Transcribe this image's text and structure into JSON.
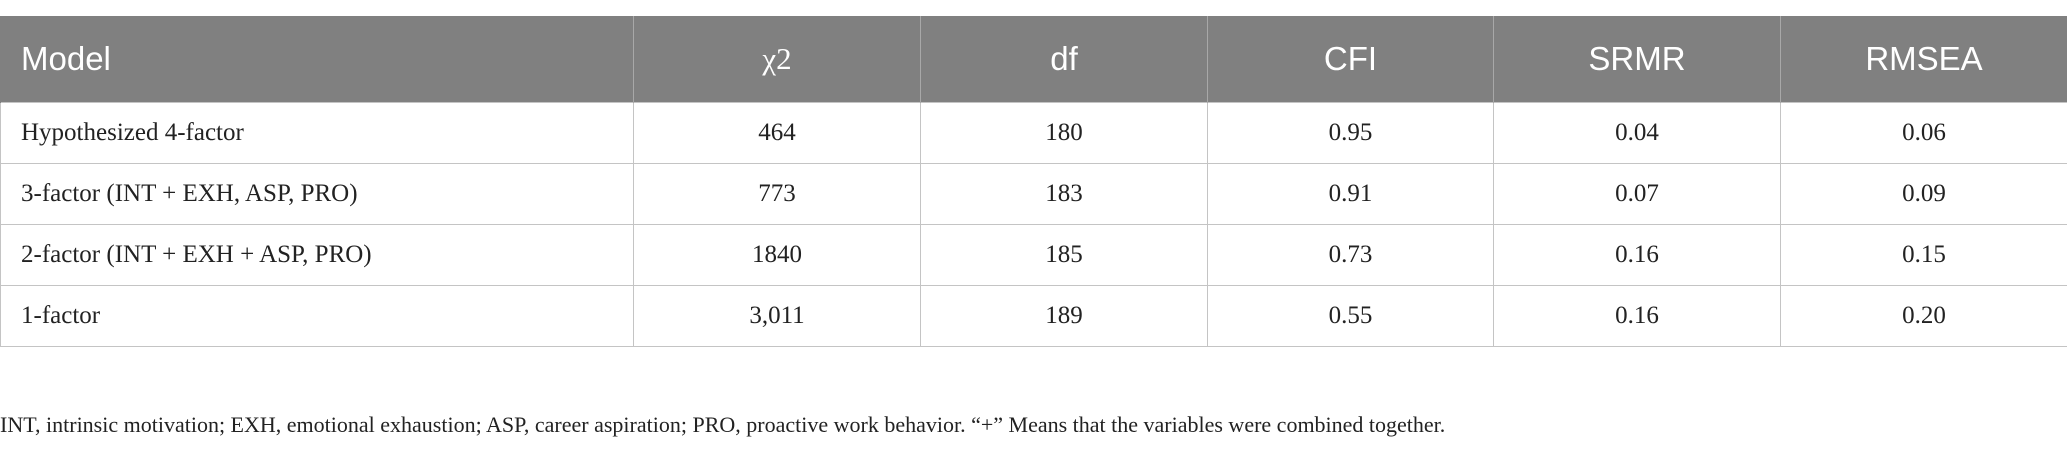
{
  "table": {
    "columns": [
      "Model",
      "χ2",
      "df",
      "CFI",
      "SRMR",
      "RMSEA"
    ],
    "rows": [
      [
        "Hypothesized 4-factor",
        "464",
        "180",
        "0.95",
        "0.04",
        "0.06"
      ],
      [
        "3-factor (INT + EXH, ASP, PRO)",
        "773",
        "183",
        "0.91",
        "0.07",
        "0.09"
      ],
      [
        "2-factor (INT + EXH + ASP, PRO)",
        "1840",
        "185",
        "0.73",
        "0.16",
        "0.15"
      ],
      [
        "1-factor",
        "3,011",
        "189",
        "0.55",
        "0.16",
        "0.20"
      ]
    ]
  },
  "footnote": "INT, intrinsic motivation; EXH, emotional exhaustion; ASP, career aspiration; PRO, proactive work behavior. “+” Means that the variables were combined together.",
  "colors": {
    "header_bg": "#808080",
    "header_text": "#ffffff",
    "grid_line": "#c4c4c4",
    "body_text": "#222222"
  }
}
